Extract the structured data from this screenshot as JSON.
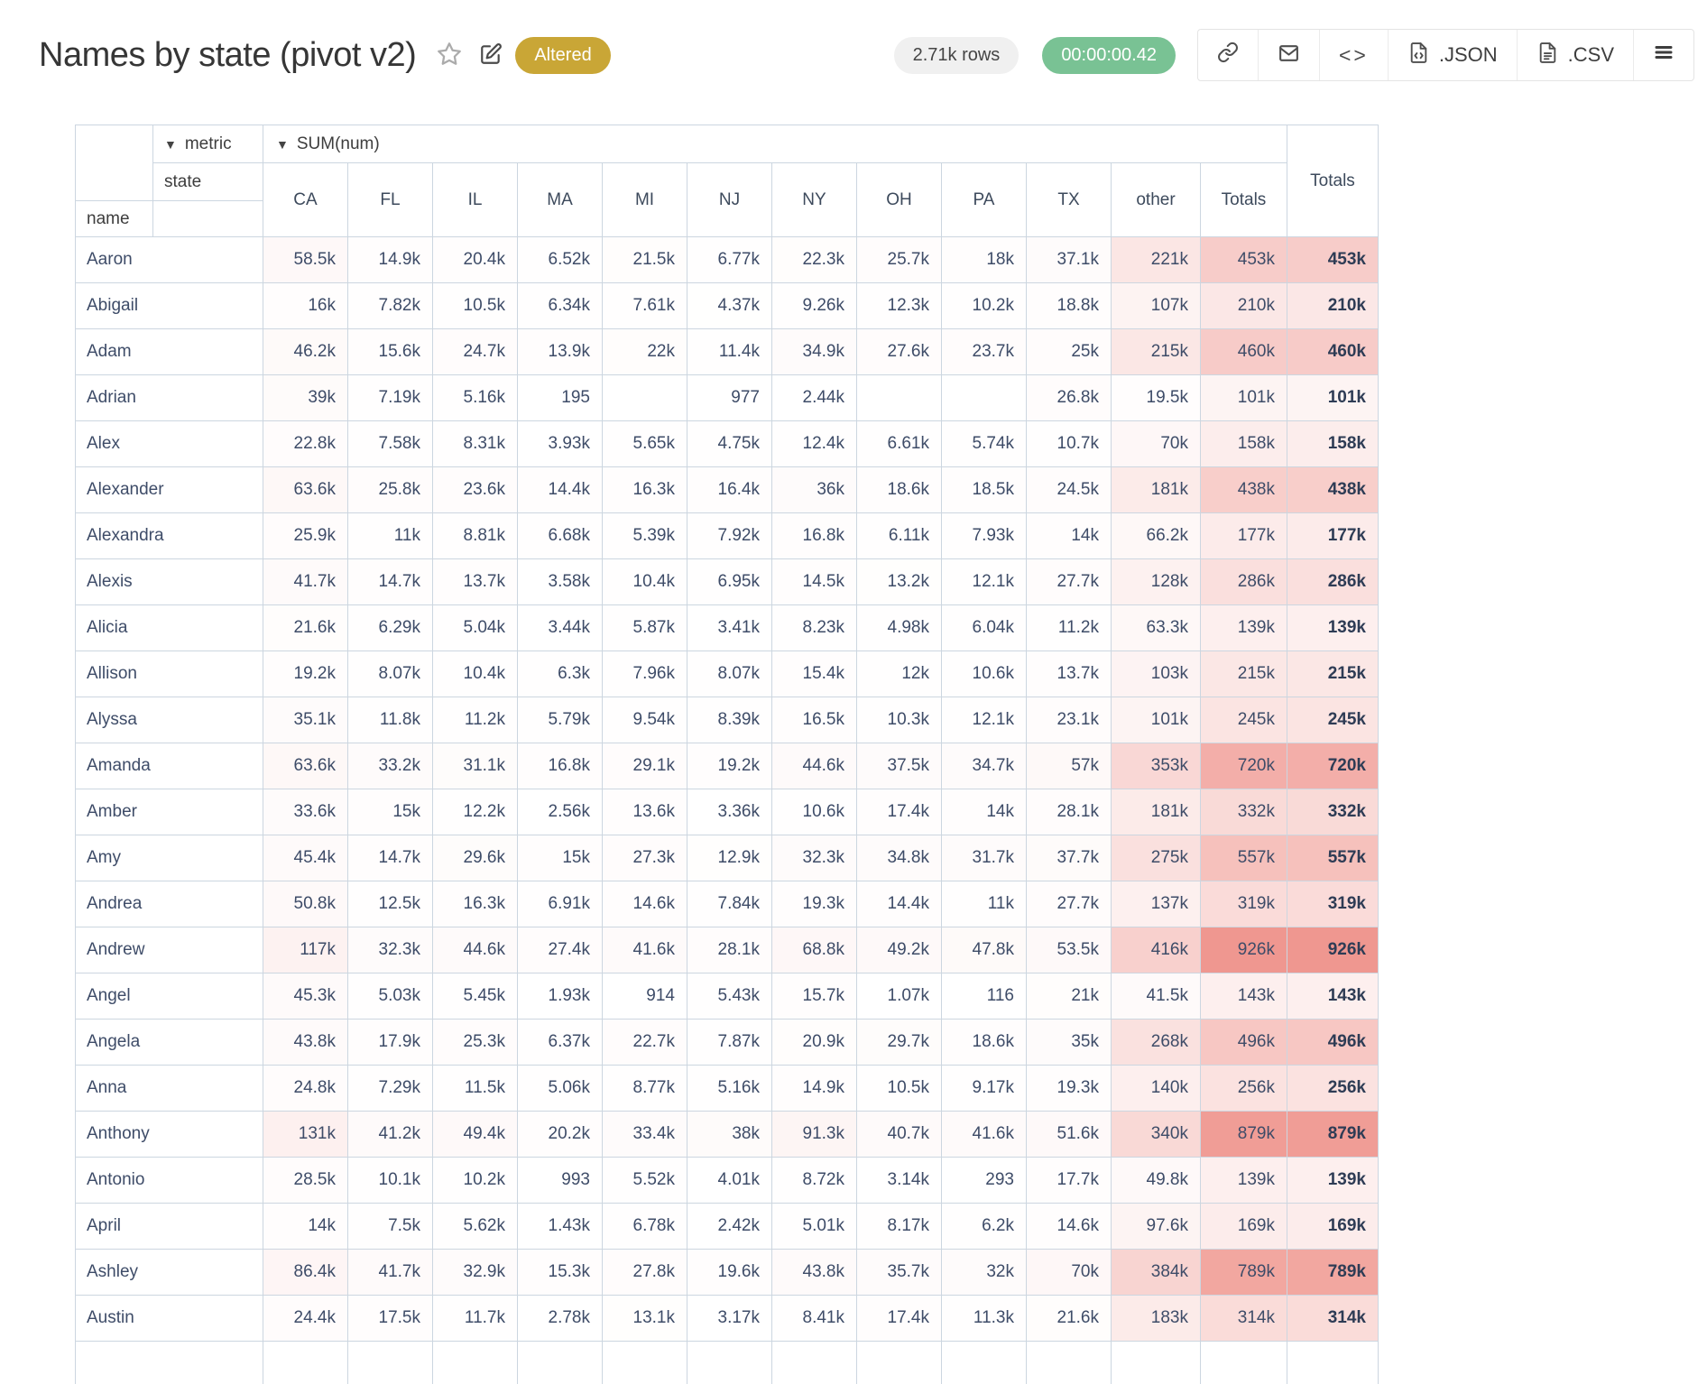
{
  "header": {
    "title": "Names by state (pivot v2)",
    "status_badge": "Altered",
    "rows_count": "2.71k rows",
    "runtime": "00:00:00.42",
    "export_json_label": ".JSON",
    "export_csv_label": ".CSV",
    "code_glyph": "<>"
  },
  "colors": {
    "badge_gold": "#c9a636",
    "timer_green": "#79c294",
    "heat_max": "#ee8f87",
    "grid_border": "#ccd6e0"
  },
  "icons": {
    "sort_arrow": "▼"
  },
  "pivot": {
    "metric_axis_label": "metric",
    "metric_value": "SUM(num)",
    "state_axis_label": "state",
    "row_axis_label": "name",
    "totals_label": "Totals",
    "heat_scale_max": 1000000,
    "columns": [
      "CA",
      "FL",
      "IL",
      "MA",
      "MI",
      "NJ",
      "NY",
      "OH",
      "PA",
      "TX",
      "other",
      "Totals"
    ],
    "rows": [
      {
        "name": "Aaron",
        "cells": [
          "58.5k",
          "14.9k",
          "20.4k",
          "6.52k",
          "21.5k",
          "6.77k",
          "22.3k",
          "25.7k",
          "18k",
          "37.1k",
          "221k",
          "453k"
        ],
        "total": "453k"
      },
      {
        "name": "Abigail",
        "cells": [
          "16k",
          "7.82k",
          "10.5k",
          "6.34k",
          "7.61k",
          "4.37k",
          "9.26k",
          "12.3k",
          "10.2k",
          "18.8k",
          "107k",
          "210k"
        ],
        "total": "210k"
      },
      {
        "name": "Adam",
        "cells": [
          "46.2k",
          "15.6k",
          "24.7k",
          "13.9k",
          "22k",
          "11.4k",
          "34.9k",
          "27.6k",
          "23.7k",
          "25k",
          "215k",
          "460k"
        ],
        "total": "460k"
      },
      {
        "name": "Adrian",
        "cells": [
          "39k",
          "7.19k",
          "5.16k",
          "195",
          "",
          "977",
          "2.44k",
          "",
          "",
          "26.8k",
          "19.5k",
          "101k"
        ],
        "total": "101k"
      },
      {
        "name": "Alex",
        "cells": [
          "22.8k",
          "7.58k",
          "8.31k",
          "3.93k",
          "5.65k",
          "4.75k",
          "12.4k",
          "6.61k",
          "5.74k",
          "10.7k",
          "70k",
          "158k"
        ],
        "total": "158k"
      },
      {
        "name": "Alexander",
        "cells": [
          "63.6k",
          "25.8k",
          "23.6k",
          "14.4k",
          "16.3k",
          "16.4k",
          "36k",
          "18.6k",
          "18.5k",
          "24.5k",
          "181k",
          "438k"
        ],
        "total": "438k"
      },
      {
        "name": "Alexandra",
        "cells": [
          "25.9k",
          "11k",
          "8.81k",
          "6.68k",
          "5.39k",
          "7.92k",
          "16.8k",
          "6.11k",
          "7.93k",
          "14k",
          "66.2k",
          "177k"
        ],
        "total": "177k"
      },
      {
        "name": "Alexis",
        "cells": [
          "41.7k",
          "14.7k",
          "13.7k",
          "3.58k",
          "10.4k",
          "6.95k",
          "14.5k",
          "13.2k",
          "12.1k",
          "27.7k",
          "128k",
          "286k"
        ],
        "total": "286k"
      },
      {
        "name": "Alicia",
        "cells": [
          "21.6k",
          "6.29k",
          "5.04k",
          "3.44k",
          "5.87k",
          "3.41k",
          "8.23k",
          "4.98k",
          "6.04k",
          "11.2k",
          "63.3k",
          "139k"
        ],
        "total": "139k"
      },
      {
        "name": "Allison",
        "cells": [
          "19.2k",
          "8.07k",
          "10.4k",
          "6.3k",
          "7.96k",
          "8.07k",
          "15.4k",
          "12k",
          "10.6k",
          "13.7k",
          "103k",
          "215k"
        ],
        "total": "215k"
      },
      {
        "name": "Alyssa",
        "cells": [
          "35.1k",
          "11.8k",
          "11.2k",
          "5.79k",
          "9.54k",
          "8.39k",
          "16.5k",
          "10.3k",
          "12.1k",
          "23.1k",
          "101k",
          "245k"
        ],
        "total": "245k"
      },
      {
        "name": "Amanda",
        "cells": [
          "63.6k",
          "33.2k",
          "31.1k",
          "16.8k",
          "29.1k",
          "19.2k",
          "44.6k",
          "37.5k",
          "34.7k",
          "57k",
          "353k",
          "720k"
        ],
        "total": "720k"
      },
      {
        "name": "Amber",
        "cells": [
          "33.6k",
          "15k",
          "12.2k",
          "2.56k",
          "13.6k",
          "3.36k",
          "10.6k",
          "17.4k",
          "14k",
          "28.1k",
          "181k",
          "332k"
        ],
        "total": "332k"
      },
      {
        "name": "Amy",
        "cells": [
          "45.4k",
          "14.7k",
          "29.6k",
          "15k",
          "27.3k",
          "12.9k",
          "32.3k",
          "34.8k",
          "31.7k",
          "37.7k",
          "275k",
          "557k"
        ],
        "total": "557k"
      },
      {
        "name": "Andrea",
        "cells": [
          "50.8k",
          "12.5k",
          "16.3k",
          "6.91k",
          "14.6k",
          "7.84k",
          "19.3k",
          "14.4k",
          "11k",
          "27.7k",
          "137k",
          "319k"
        ],
        "total": "319k"
      },
      {
        "name": "Andrew",
        "cells": [
          "117k",
          "32.3k",
          "44.6k",
          "27.4k",
          "41.6k",
          "28.1k",
          "68.8k",
          "49.2k",
          "47.8k",
          "53.5k",
          "416k",
          "926k"
        ],
        "total": "926k"
      },
      {
        "name": "Angel",
        "cells": [
          "45.3k",
          "5.03k",
          "5.45k",
          "1.93k",
          "914",
          "5.43k",
          "15.7k",
          "1.07k",
          "116",
          "21k",
          "41.5k",
          "143k"
        ],
        "total": "143k"
      },
      {
        "name": "Angela",
        "cells": [
          "43.8k",
          "17.9k",
          "25.3k",
          "6.37k",
          "22.7k",
          "7.87k",
          "20.9k",
          "29.7k",
          "18.6k",
          "35k",
          "268k",
          "496k"
        ],
        "total": "496k"
      },
      {
        "name": "Anna",
        "cells": [
          "24.8k",
          "7.29k",
          "11.5k",
          "5.06k",
          "8.77k",
          "5.16k",
          "14.9k",
          "10.5k",
          "9.17k",
          "19.3k",
          "140k",
          "256k"
        ],
        "total": "256k"
      },
      {
        "name": "Anthony",
        "cells": [
          "131k",
          "41.2k",
          "49.4k",
          "20.2k",
          "33.4k",
          "38k",
          "91.3k",
          "40.7k",
          "41.6k",
          "51.6k",
          "340k",
          "879k"
        ],
        "total": "879k"
      },
      {
        "name": "Antonio",
        "cells": [
          "28.5k",
          "10.1k",
          "10.2k",
          "993",
          "5.52k",
          "4.01k",
          "8.72k",
          "3.14k",
          "293",
          "17.7k",
          "49.8k",
          "139k"
        ],
        "total": "139k"
      },
      {
        "name": "April",
        "cells": [
          "14k",
          "7.5k",
          "5.62k",
          "1.43k",
          "6.78k",
          "2.42k",
          "5.01k",
          "8.17k",
          "6.2k",
          "14.6k",
          "97.6k",
          "169k"
        ],
        "total": "169k"
      },
      {
        "name": "Ashley",
        "cells": [
          "86.4k",
          "41.7k",
          "32.9k",
          "15.3k",
          "27.8k",
          "19.6k",
          "43.8k",
          "35.7k",
          "32k",
          "70k",
          "384k",
          "789k"
        ],
        "total": "789k"
      },
      {
        "name": "Austin",
        "cells": [
          "24.4k",
          "17.5k",
          "11.7k",
          "2.78k",
          "13.1k",
          "3.17k",
          "8.41k",
          "17.4k",
          "11.3k",
          "21.6k",
          "183k",
          "314k"
        ],
        "total": "314k"
      },
      {
        "name": "",
        "cells": [
          "",
          "",
          "",
          "",
          "",
          "",
          "",
          "",
          "",
          "",
          "",
          ""
        ],
        "total": ""
      }
    ]
  }
}
